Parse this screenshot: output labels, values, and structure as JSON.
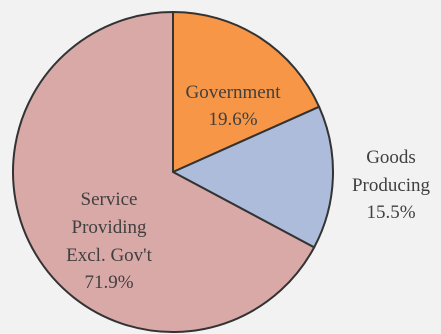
{
  "chart_data": {
    "type": "pie",
    "title": "",
    "slices": [
      {
        "label_lines": [
          "Government"
        ],
        "value_label": "19.6%",
        "value": 19.6,
        "color": "#f79646",
        "label_position": "inside"
      },
      {
        "label_lines": [
          "Goods",
          "Producing"
        ],
        "value_label": "15.5%",
        "value": 15.5,
        "color": "#adbcda",
        "label_position": "outside"
      },
      {
        "label_lines": [
          "Service",
          "Providing",
          "Excl. Gov't"
        ],
        "value_label": "71.9%",
        "value": 71.9,
        "color": "#d9a9a8",
        "label_position": "inside"
      }
    ],
    "start_angle": "12 o'clock",
    "direction": "clockwise",
    "legend": "none"
  }
}
